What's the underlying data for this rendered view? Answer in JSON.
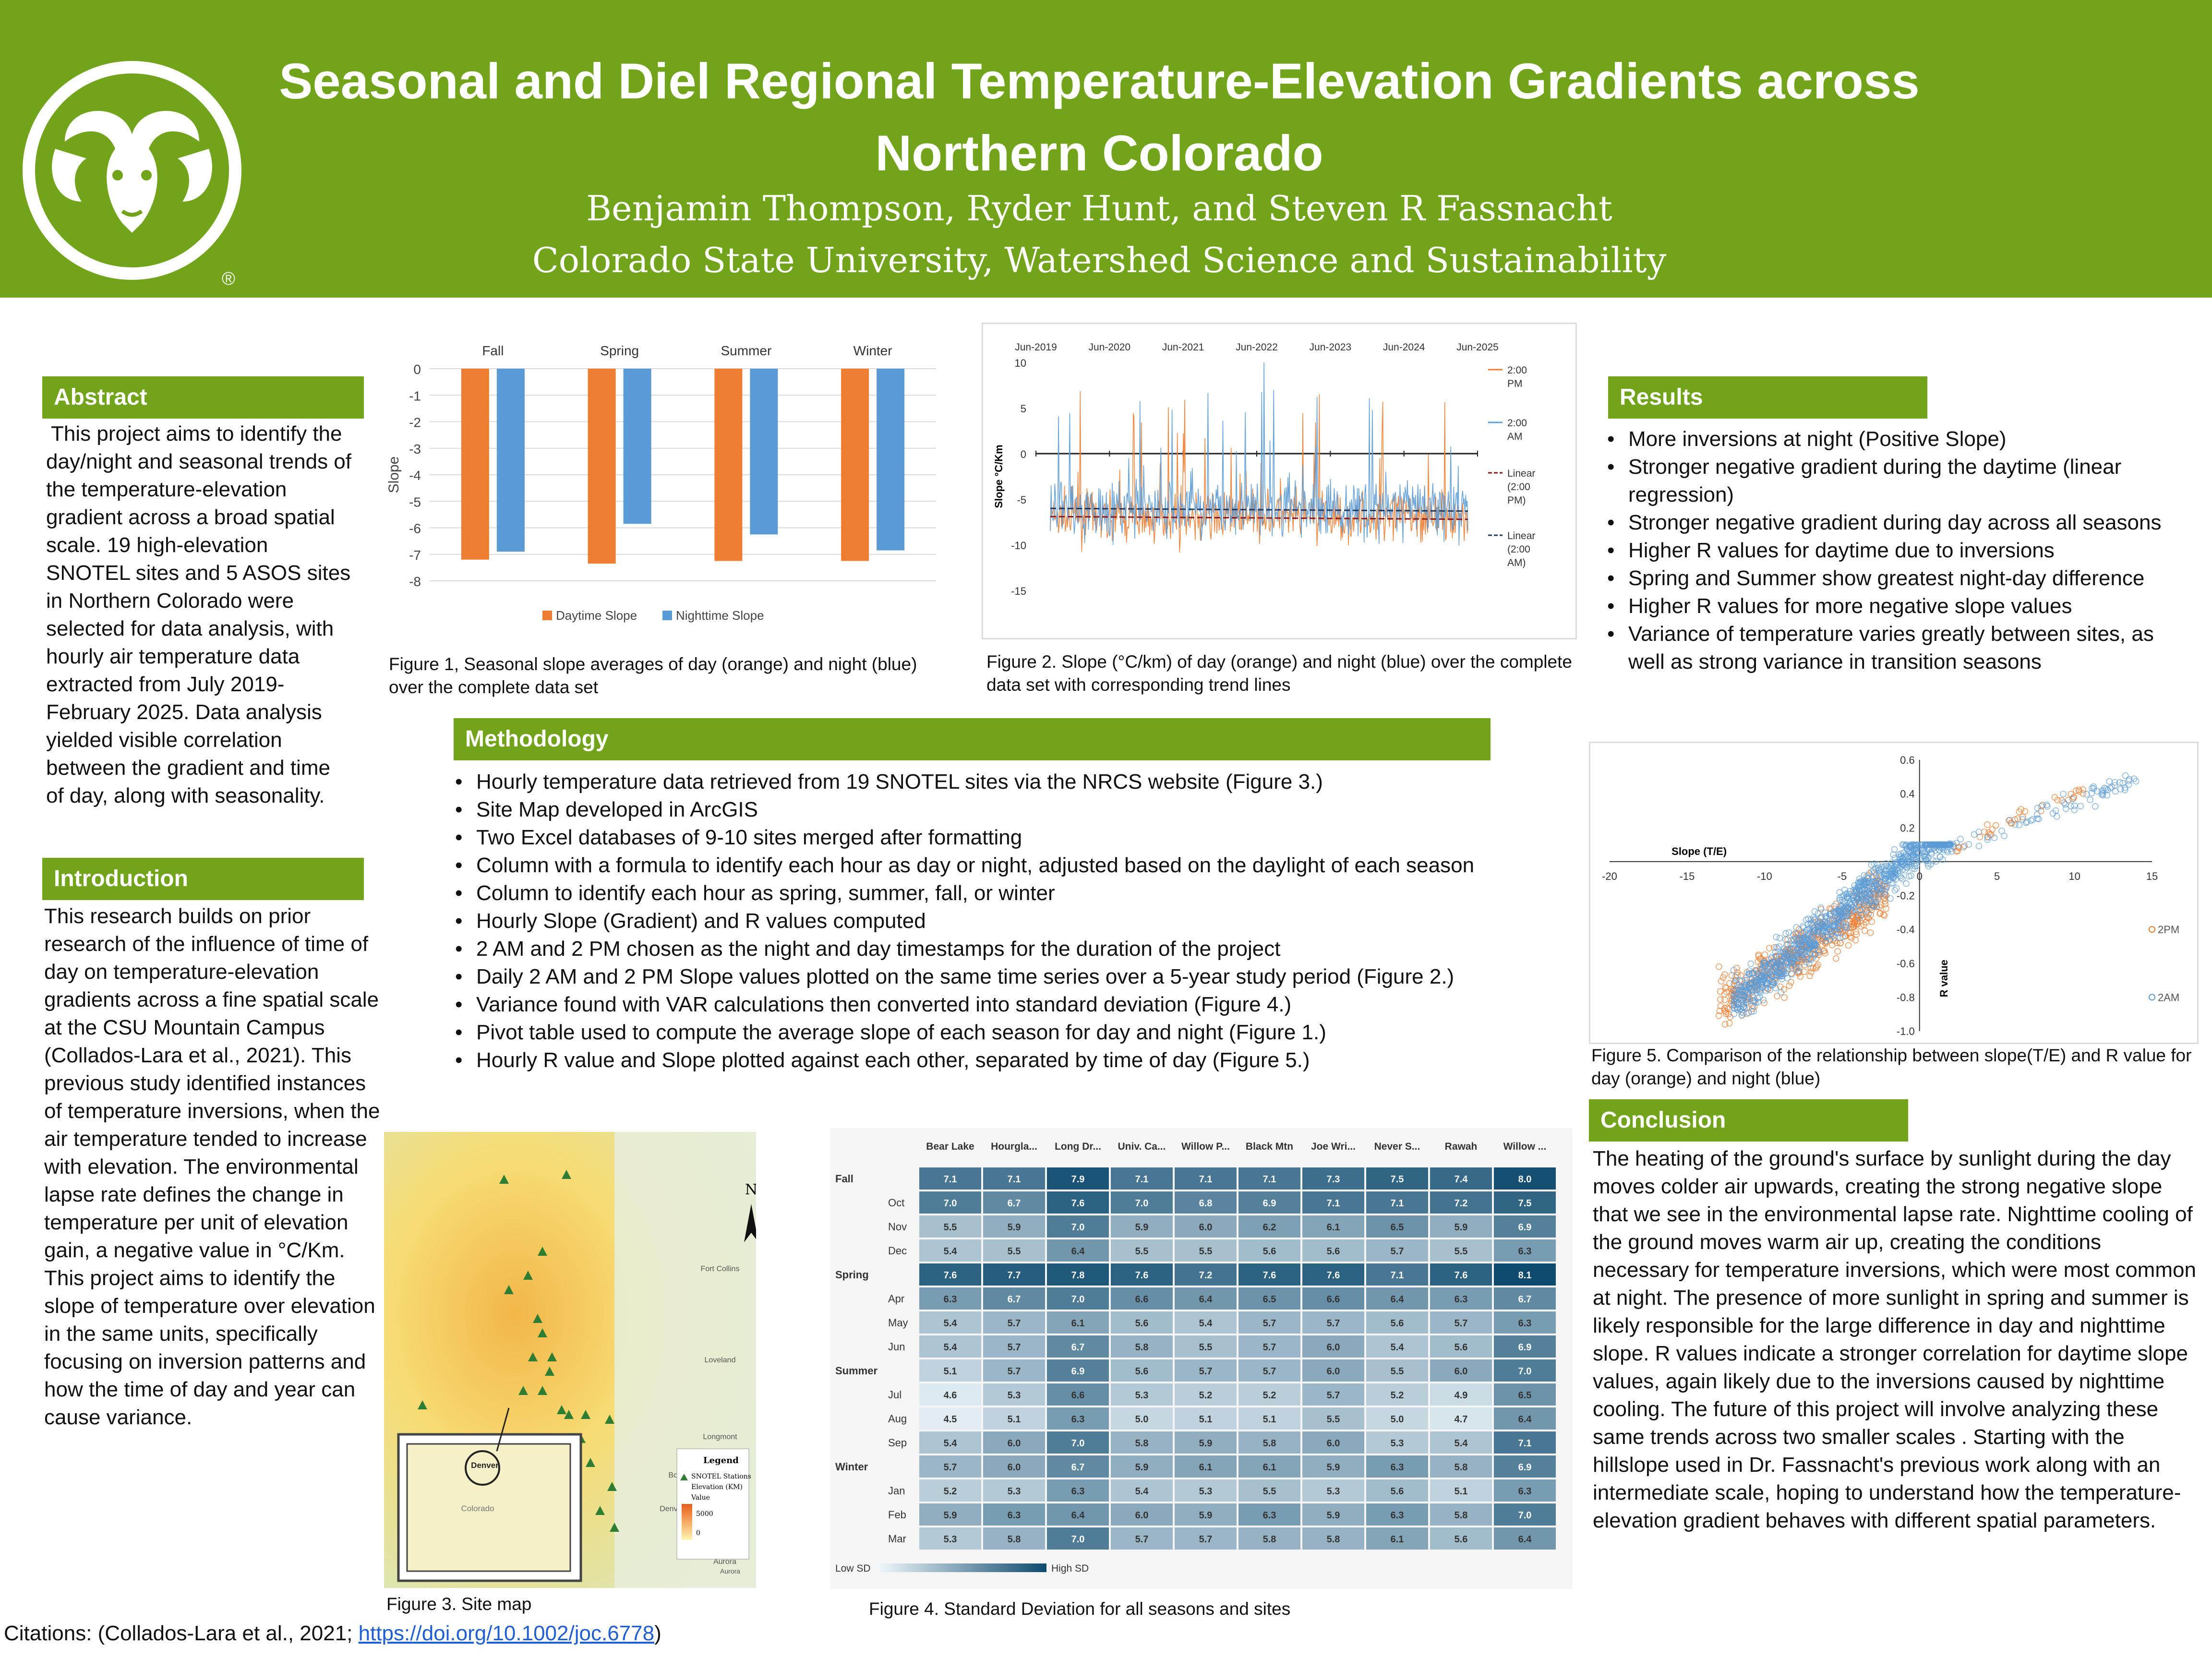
{
  "header": {
    "title": "Seasonal and Diel Regional Temperature-Elevation Gradients across Northern Colorado",
    "authors": "Benjamin Thompson, Ryder Hunt, and Steven R Fassnacht",
    "affiliation": "Colorado State University, Watershed Science and Sustainability",
    "registered": "®"
  },
  "abstract": {
    "heading": "Abstract",
    "text": "This project aims to identify the day/night and seasonal trends of the temperature-elevation gradient across a broad spatial scale. 19 high-elevation SNOTEL sites and 5 ASOS sites in Northern Colorado were selected for data analysis, with hourly air temperature data extracted from July 2019-February 2025. Data analysis yielded visible correlation between the gradient and time of day, along with seasonality."
  },
  "introduction": {
    "heading": "Introduction",
    "text": "This research builds on prior research of the influence of time of day on temperature-elevation gradients across a fine spatial scale at the CSU Mountain Campus (Collados-Lara et al., 2021). This previous study identified instances of temperature inversions, when the air temperature tended to increase with elevation. The environmental lapse rate defines the change in temperature per unit of elevation gain, a negative value in °C/Km. This project aims to identify the slope of temperature over elevation in the same units, specifically focusing on inversion patterns and how the time of day and year can cause variance."
  },
  "methodology": {
    "heading": "Methodology",
    "items": [
      "Hourly temperature data retrieved from 19 SNOTEL sites via the NRCS website (Figure 3.)",
      "Site Map developed in ArcGIS",
      "Two Excel databases of 9-10 sites merged after formatting",
      "Column with a formula to identify each hour as day or night, adjusted based on the daylight of each season",
      "Column to identify each hour as spring, summer, fall, or winter",
      "Hourly Slope (Gradient) and R values computed",
      "2 AM and 2 PM chosen as the night and day timestamps for the duration of the project",
      "Daily 2 AM and 2 PM Slope values plotted on the same time series over a 5-year study period (Figure 2.)",
      "Variance found with VAR calculations then converted into standard deviation (Figure 4.)",
      "Pivot table used to compute the average slope of each season for day and night (Figure 1.)",
      "Hourly R value and Slope plotted against each other, separated by time of day (Figure 5.)"
    ]
  },
  "results": {
    "heading": "Results",
    "items": [
      "More inversions at night (Positive Slope)",
      "Stronger negative gradient during the daytime (linear regression)",
      "Stronger negative gradient during day across all seasons",
      "Higher R values for daytime due to inversions",
      "Spring and Summer show greatest night-day difference",
      "Higher R values for more negative slope values",
      "Variance of temperature varies greatly between sites, as well as strong variance in transition seasons"
    ]
  },
  "conclusion": {
    "heading": "Conclusion",
    "text": "The heating of the ground's surface by sunlight during the day moves colder air upwards, creating the strong negative slope that we see in the environmental lapse rate. Nighttime cooling of the ground moves warm air up, creating the conditions necessary for temperature inversions, which were most common at night. The presence of more sunlight in spring and summer is likely responsible for the large difference in day and nighttime slope. R values indicate a stronger correlation for daytime slope values, again likely due to the inversions caused by nighttime cooling. The future of this project will involve analyzing these same trends across two smaller scales . Starting with the hillslope used in Dr. Fassnacht's previous work along with an intermediate scale, hoping to understand how the temperature-elevation gradient behaves with different spatial parameters."
  },
  "captions": {
    "fig1": "Figure 1,  Seasonal slope averages of day (orange) and night (blue) over the complete data set",
    "fig2": "Figure 2. Slope (°C/km) of day (orange) and night (blue) over the complete data set with corresponding trend lines",
    "fig3": "Figure 3. Site map",
    "fig4": "Figure 4. Standard Deviation for all seasons and sites",
    "fig5": "Figure 5. Comparison of the relationship between slope(T/E) and R value for day (orange) and night (blue)"
  },
  "citation": {
    "prefix": "Citations: (Collados-Lara et al., 2021; ",
    "link": "https://doi.org/10.1002/joc.6778",
    "suffix": ")"
  },
  "colors": {
    "green": "#72a41b",
    "orange": "#ed7d31",
    "blue": "#5b9bd5"
  },
  "chart_data": [
    {
      "id": "fig1",
      "type": "bar",
      "categories": [
        "Fall",
        "Spring",
        "Summer",
        "Winter"
      ],
      "series": [
        {
          "name": "Daytime Slope",
          "values": [
            -7.2,
            -7.35,
            -7.25,
            -7.25
          ]
        },
        {
          "name": "Nighttime Slope",
          "values": [
            -6.9,
            -5.85,
            -6.25,
            -6.85
          ]
        }
      ],
      "ylabel": "Slope",
      "ylim": [
        -8,
        0
      ],
      "yticks": [
        "0",
        "-1",
        "-2",
        "-3",
        "-4",
        "-5",
        "-6",
        "-7",
        "-8"
      ],
      "legend": "bottom"
    },
    {
      "id": "fig2",
      "type": "line",
      "xticks": [
        "Jun-2019",
        "Jun-2020",
        "Jun-2021",
        "Jun-2022",
        "Jun-2023",
        "Jun-2024",
        "Jun-2025"
      ],
      "yticks": [
        "10",
        "5",
        "0",
        "-5",
        "-10",
        "-15"
      ],
      "ylabel": "Slope °C/Km",
      "ylim": [
        -15,
        10
      ],
      "series": [
        {
          "name": "2:00 PM",
          "legend": [
            "2:00",
            "PM"
          ],
          "trend": -6.9
        },
        {
          "name": "2:00 AM",
          "legend": [
            "2:00",
            "AM"
          ],
          "trend": -6.0
        }
      ],
      "trend_legend": [
        [
          "Linear",
          "(2:00",
          "PM)"
        ],
        [
          "Linear",
          "(2:00",
          "AM)"
        ]
      ]
    },
    {
      "id": "fig4",
      "type": "heatmap",
      "columns": [
        "Bear Lake",
        "Hourgla...",
        "Long Dr...",
        "Univ. Ca...",
        "Willow P...",
        "Black Mtn",
        "Joe Wri...",
        "Never S...",
        "Rawah",
        "Willow ..."
      ],
      "rows": [
        {
          "label": "Fall",
          "group": true,
          "values": [
            7.1,
            7.1,
            7.9,
            7.1,
            7.1,
            7.1,
            7.3,
            7.5,
            7.4,
            8.0
          ]
        },
        {
          "label": "Oct",
          "values": [
            7.0,
            6.7,
            7.6,
            7.0,
            6.8,
            6.9,
            7.1,
            7.1,
            7.2,
            7.5
          ]
        },
        {
          "label": "Nov",
          "values": [
            5.5,
            5.9,
            7.0,
            5.9,
            6.0,
            6.2,
            6.1,
            6.5,
            5.9,
            6.9
          ]
        },
        {
          "label": "Dec",
          "values": [
            5.4,
            5.5,
            6.4,
            5.5,
            5.5,
            5.6,
            5.6,
            5.7,
            5.5,
            6.3
          ]
        },
        {
          "label": "Spring",
          "group": true,
          "values": [
            7.6,
            7.7,
            7.8,
            7.6,
            7.2,
            7.6,
            7.6,
            7.1,
            7.6,
            8.1
          ]
        },
        {
          "label": "Apr",
          "values": [
            6.3,
            6.7,
            7.0,
            6.6,
            6.4,
            6.5,
            6.6,
            6.4,
            6.3,
            6.7
          ]
        },
        {
          "label": "May",
          "values": [
            5.4,
            5.7,
            6.1,
            5.6,
            5.4,
            5.7,
            5.7,
            5.6,
            5.7,
            6.3
          ]
        },
        {
          "label": "Jun",
          "values": [
            5.4,
            5.7,
            6.7,
            5.8,
            5.5,
            5.7,
            6.0,
            5.4,
            5.6,
            6.9
          ]
        },
        {
          "label": "Summer",
          "group": true,
          "values": [
            5.1,
            5.7,
            6.9,
            5.6,
            5.7,
            5.7,
            6.0,
            5.5,
            6.0,
            7.0
          ]
        },
        {
          "label": "Jul",
          "values": [
            4.6,
            5.3,
            6.6,
            5.3,
            5.2,
            5.2,
            5.7,
            5.2,
            4.9,
            6.5
          ]
        },
        {
          "label": "Aug",
          "values": [
            4.5,
            5.1,
            6.3,
            5.0,
            5.1,
            5.1,
            5.5,
            5.0,
            4.7,
            6.4
          ]
        },
        {
          "label": "Sep",
          "values": [
            5.4,
            6.0,
            7.0,
            5.8,
            5.9,
            5.8,
            6.0,
            5.3,
            5.4,
            7.1
          ]
        },
        {
          "label": "Winter",
          "group": true,
          "values": [
            5.7,
            6.0,
            6.7,
            5.9,
            6.1,
            6.1,
            5.9,
            6.3,
            5.8,
            6.9
          ]
        },
        {
          "label": "Jan",
          "values": [
            5.2,
            5.3,
            6.3,
            5.4,
            5.3,
            5.5,
            5.3,
            5.6,
            5.1,
            6.3
          ]
        },
        {
          "label": "Feb",
          "values": [
            5.9,
            6.3,
            6.4,
            6.0,
            5.9,
            6.3,
            5.9,
            6.3,
            5.8,
            7.0
          ]
        },
        {
          "label": "Mar",
          "values": [
            5.3,
            5.8,
            7.0,
            5.7,
            5.7,
            5.8,
            5.8,
            6.1,
            5.6,
            6.4
          ]
        }
      ],
      "low_label": "Low SD",
      "high_label": "High SD"
    },
    {
      "id": "fig5",
      "type": "scatter",
      "xlabel": "Slope (T/E)",
      "ylabel": "R value",
      "xticks": [
        "-20",
        "-15",
        "-10",
        "-5",
        "0",
        "5",
        "10",
        "15"
      ],
      "yticks": [
        "0.6",
        "0.4",
        "0.2",
        "-0.2",
        "-0.4",
        "-0.6",
        "-0.8",
        "-1.0"
      ],
      "xlim": [
        -20,
        15
      ],
      "ylim": [
        -1,
        0.6
      ],
      "series": [
        {
          "name": "2PM"
        },
        {
          "name": "2AM"
        }
      ]
    }
  ],
  "map": {
    "north": "N",
    "legend_title": "Legend",
    "legend_items": [
      "SNOTEL Stations",
      "Elevation (KM)",
      "Value",
      "5000",
      "0"
    ],
    "places": [
      "Fort Collins",
      "Loveland",
      "Longmont",
      "Boulder",
      "Denver",
      "Aurora",
      "Denver",
      "Colorado"
    ]
  }
}
